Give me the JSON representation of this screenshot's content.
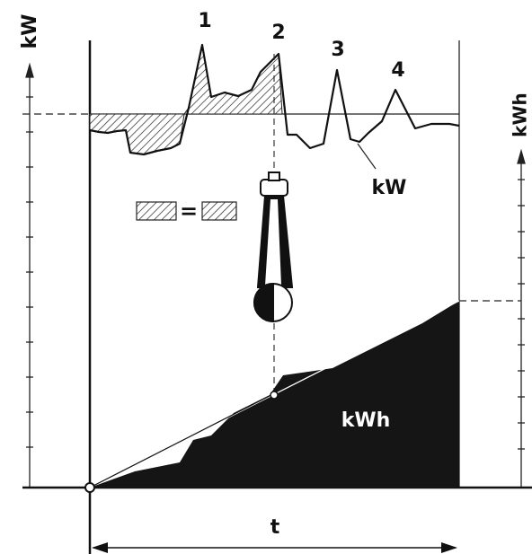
{
  "axis_labels": {
    "left": "kW",
    "right": "kWh"
  },
  "peaks": [
    "1",
    "2",
    "3",
    "4"
  ],
  "curve_label": "kW",
  "area_label": "kWh",
  "equality": "=",
  "time_label": "t"
}
